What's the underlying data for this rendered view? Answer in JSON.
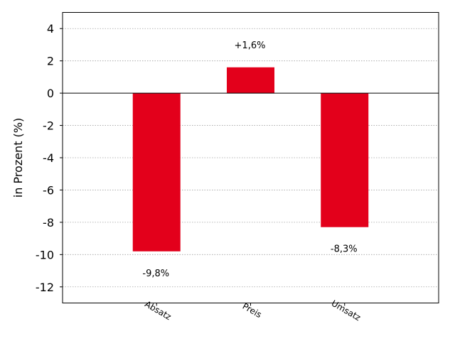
{
  "chart_data": {
    "type": "bar",
    "categories": [
      "Absatz",
      "Preis",
      "Umsatz"
    ],
    "values": [
      -9.8,
      1.6,
      -8.3
    ],
    "data_labels": [
      "-9,8%",
      "+1,6%",
      "-8,3%"
    ],
    "title": "",
    "xlabel": "",
    "ylabel": "in Prozent (%)",
    "ylim": [
      -13,
      5
    ],
    "yticks": [
      4,
      2,
      0,
      -2,
      -4,
      -6,
      -8,
      -10,
      -12
    ],
    "ytick_labels": [
      "4",
      "2",
      "0",
      "-2",
      "-4",
      "-6",
      "-8",
      "-10",
      "-12"
    ],
    "bar_color": "#e3001b",
    "grid": true,
    "grid_style": "dotted",
    "zero_line": true,
    "category_label_rotation": "rotated"
  }
}
